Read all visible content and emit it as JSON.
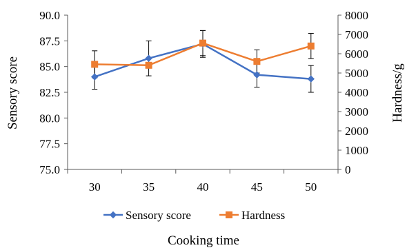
{
  "chart_data": {
    "type": "line",
    "categories": [
      "30",
      "35",
      "40",
      "45",
      "50"
    ],
    "xlabel": "Cooking time",
    "ylabel_left": "Sensory score",
    "ylabel_right": "Hardness/g",
    "ylim_left": [
      75.0,
      90.0
    ],
    "ylim_right": [
      0,
      8000
    ],
    "yticks_left": [
      "75.0",
      "77.5",
      "80.0",
      "82.5",
      "85.0",
      "87.5",
      "90.0"
    ],
    "yticks_right": [
      "0",
      "1000",
      "2000",
      "3000",
      "4000",
      "5000",
      "6000",
      "7000",
      "8000"
    ],
    "series": [
      {
        "name": "Sensory score",
        "axis": "left",
        "color": "#4472C4",
        "marker": "diamond",
        "values": [
          84.0,
          85.8,
          87.2,
          84.2,
          83.8
        ],
        "error": [
          1.2,
          1.7,
          1.3,
          1.2,
          1.3
        ]
      },
      {
        "name": "Hardness",
        "axis": "right",
        "color": "#ED7D31",
        "marker": "square",
        "values": [
          5450,
          5400,
          6550,
          5600,
          6400
        ],
        "error": [
          700,
          0,
          650,
          600,
          650
        ]
      }
    ],
    "legend_position": "bottom",
    "grid": false
  }
}
